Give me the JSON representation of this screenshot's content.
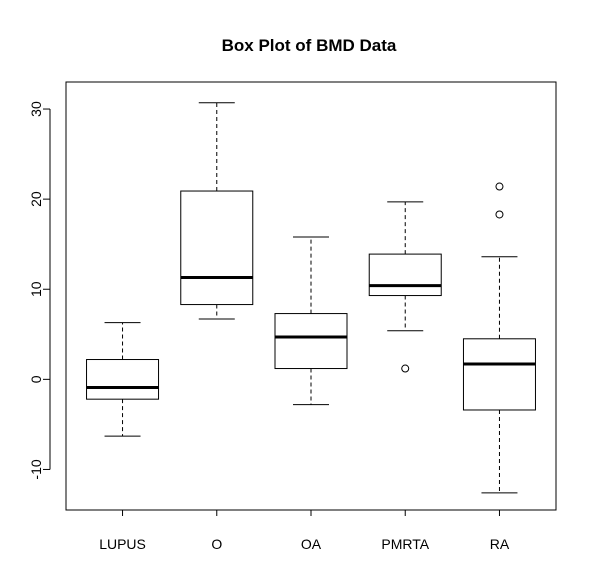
{
  "chart_data": {
    "type": "box",
    "title": "Box Plot of BMD Data",
    "xlabel": "",
    "ylabel": "",
    "ylim": [
      -14.5,
      33
    ],
    "yticks": [
      -10,
      0,
      10,
      20,
      30
    ],
    "ytick_labels": [
      "-10",
      "0",
      "10",
      "20",
      "30"
    ],
    "grid": false,
    "legend": "none",
    "categories": [
      "LUPUS",
      "O",
      "OA",
      "PMRTA",
      "RA"
    ],
    "boxes": [
      {
        "category": "LUPUS",
        "whisker_low": -6.3,
        "q1": -2.2,
        "median": -0.9,
        "q3": 2.2,
        "whisker_high": 6.3,
        "outliers": []
      },
      {
        "category": "O",
        "whisker_low": 6.7,
        "q1": 8.3,
        "median": 11.3,
        "q3": 20.9,
        "whisker_high": 30.7,
        "outliers": []
      },
      {
        "category": "OA",
        "whisker_low": -2.8,
        "q1": 1.2,
        "median": 4.7,
        "q3": 7.3,
        "whisker_high": 15.8,
        "outliers": []
      },
      {
        "category": "PMRTA",
        "whisker_low": 5.4,
        "q1": 9.3,
        "median": 10.4,
        "q3": 13.9,
        "whisker_high": 19.7,
        "outliers": [
          1.2
        ]
      },
      {
        "category": "RA",
        "whisker_low": -12.6,
        "q1": -3.4,
        "median": 1.7,
        "q3": 4.5,
        "whisker_high": 13.6,
        "outliers": [
          18.3,
          21.4
        ]
      }
    ]
  }
}
